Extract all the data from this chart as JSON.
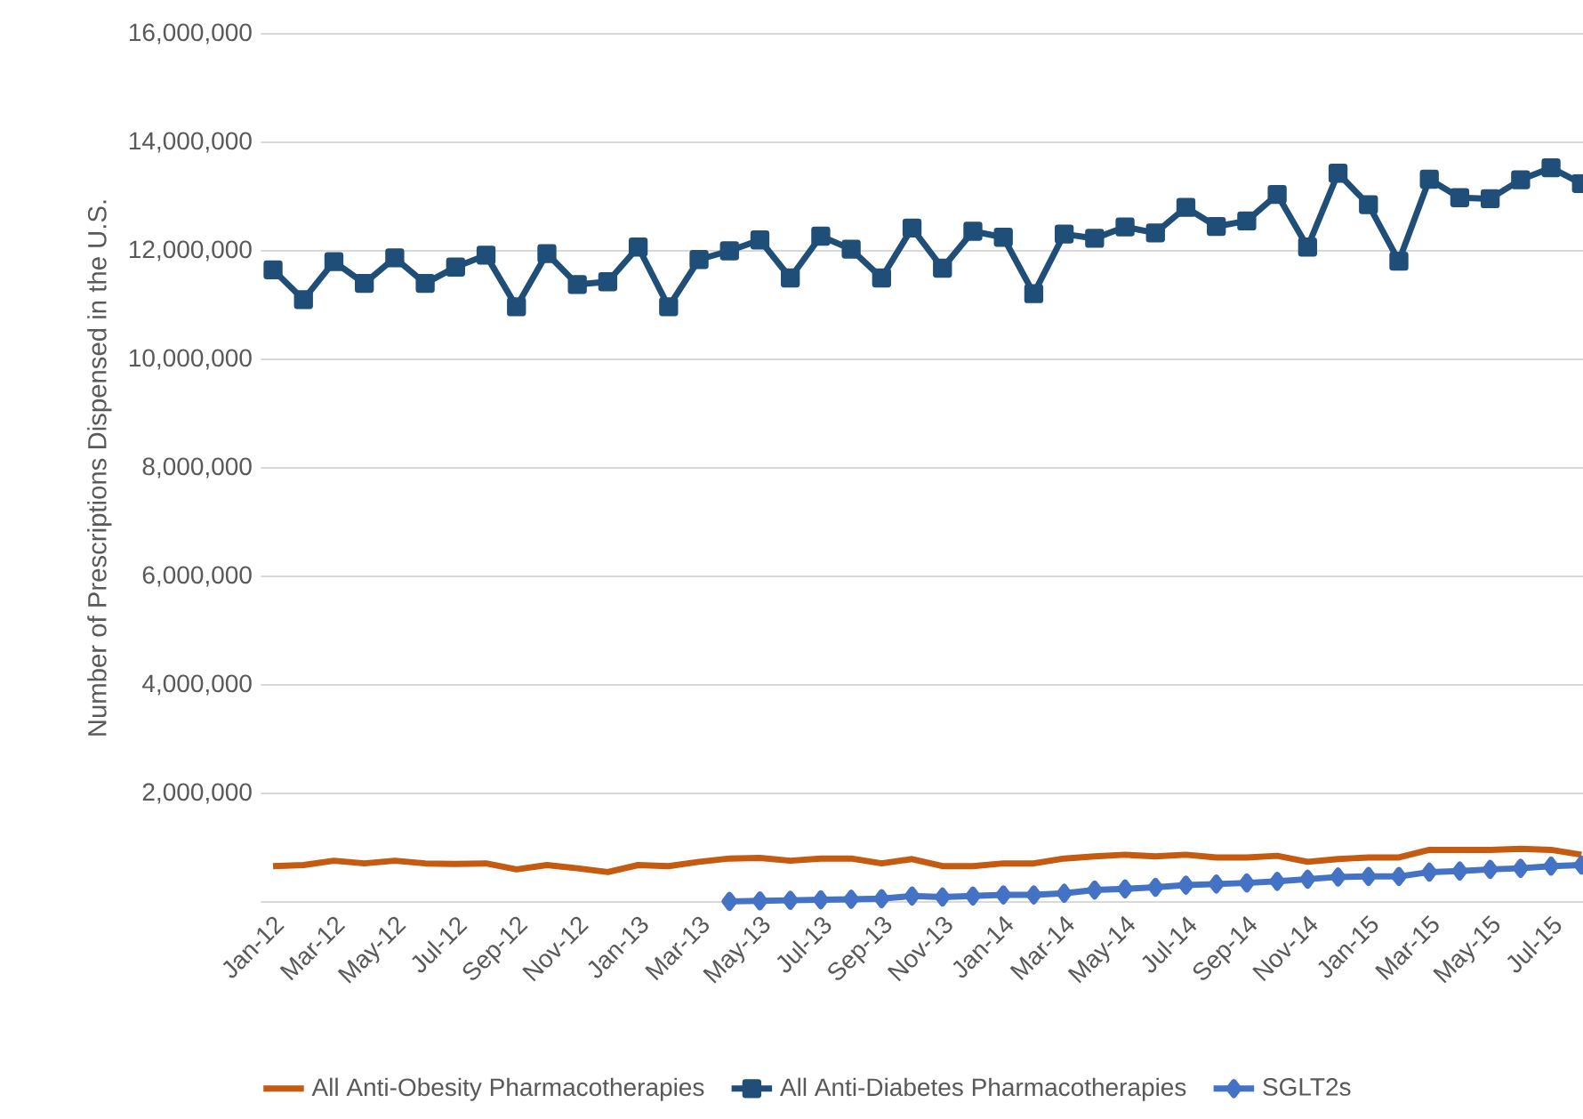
{
  "chart_data": {
    "type": "line",
    "ylabel": "Number of Prescriptions Dispensed in the U.S.",
    "categories": [
      "Jan-12",
      null,
      "Mar-12",
      null,
      "May-12",
      null,
      "Jul-12",
      null,
      "Sep-12",
      null,
      "Nov-12",
      null,
      "Jan-13",
      null,
      "Mar-13",
      null,
      "May-13",
      null,
      "Jul-13",
      null,
      "Sep-13",
      null,
      "Nov-13",
      null,
      "Jan-14",
      null,
      "Mar-14",
      null,
      "May-14",
      null,
      "Jul-14",
      null,
      "Sep-14",
      null,
      "Nov-14",
      null,
      "Jan-15",
      null,
      "Mar-15",
      null,
      "May-15",
      null,
      "Jul-15",
      null
    ],
    "series": [
      {
        "name": "All Anti-Obesity Pharmacotherapies",
        "color": "#c55a11",
        "marker": "none",
        "values": [
          660000,
          680000,
          760000,
          710000,
          760000,
          710000,
          700000,
          710000,
          600000,
          680000,
          620000,
          550000,
          680000,
          660000,
          740000,
          800000,
          810000,
          760000,
          800000,
          800000,
          710000,
          790000,
          660000,
          660000,
          710000,
          710000,
          800000,
          840000,
          870000,
          840000,
          870000,
          820000,
          820000,
          850000,
          740000,
          790000,
          820000,
          820000,
          960000,
          960000,
          960000,
          980000,
          960000,
          870000
        ]
      },
      {
        "name": "All Anti-Diabetes Pharmacotherapies",
        "color": "#1f4e79",
        "marker": "square",
        "values": [
          11650000,
          11100000,
          11800000,
          11400000,
          11870000,
          11400000,
          11700000,
          11920000,
          10970000,
          11950000,
          11380000,
          11430000,
          12070000,
          10970000,
          11840000,
          12000000,
          12200000,
          11500000,
          12270000,
          12030000,
          11500000,
          12420000,
          11680000,
          12360000,
          12250000,
          11210000,
          12310000,
          12230000,
          12440000,
          12330000,
          12800000,
          12450000,
          12550000,
          13040000,
          12070000,
          13430000,
          12850000,
          11810000,
          13320000,
          12980000,
          12960000,
          13310000,
          13530000,
          13240000
        ]
      },
      {
        "name": "SGLT2s",
        "color": "#4472c4",
        "marker": "diamond",
        "values": [
          null,
          null,
          null,
          null,
          null,
          null,
          null,
          null,
          null,
          null,
          null,
          null,
          null,
          null,
          null,
          10000,
          20000,
          30000,
          40000,
          50000,
          60000,
          110000,
          90000,
          110000,
          130000,
          130000,
          160000,
          220000,
          240000,
          270000,
          310000,
          330000,
          350000,
          380000,
          420000,
          460000,
          470000,
          470000,
          550000,
          570000,
          600000,
          620000,
          660000,
          680000
        ]
      }
    ],
    "ylim": [
      0,
      16000000
    ],
    "yticks": [
      {
        "value": 0,
        "label": null
      },
      {
        "value": 2000000,
        "label": "2,000,000"
      },
      {
        "value": 4000000,
        "label": "4,000,000"
      },
      {
        "value": 6000000,
        "label": "6,000,000"
      },
      {
        "value": 8000000,
        "label": "8,000,000"
      },
      {
        "value": 10000000,
        "label": "10,000,000"
      },
      {
        "value": 12000000,
        "label": "12,000,000"
      },
      {
        "value": 14000000,
        "label": "14,000,000"
      },
      {
        "value": 16000000,
        "label": "16,000,000"
      }
    ],
    "grid": "y",
    "legend": "bottom"
  }
}
